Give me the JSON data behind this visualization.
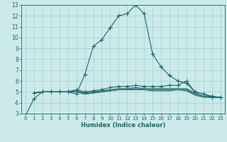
{
  "xlabel": "Humidex (Indice chaleur)",
  "bg_color": "#cceaea",
  "grid_color": "#aad4d4",
  "line_color": "#226666",
  "xlim": [
    -0.5,
    23.5
  ],
  "ylim": [
    3,
    13
  ],
  "xticks": [
    0,
    1,
    2,
    3,
    4,
    5,
    6,
    7,
    8,
    9,
    10,
    11,
    12,
    13,
    14,
    15,
    16,
    17,
    18,
    19,
    20,
    21,
    22,
    23
  ],
  "yticks": [
    3,
    4,
    5,
    6,
    7,
    8,
    9,
    10,
    11,
    12,
    13
  ],
  "lines": [
    {
      "x": [
        0,
        1,
        2,
        3,
        4,
        5,
        6,
        7,
        8,
        9,
        10,
        11,
        12,
        13,
        14,
        15,
        16,
        17,
        18,
        19,
        20,
        21,
        22,
        23
      ],
      "y": [
        2.8,
        4.4,
        5.0,
        5.0,
        5.0,
        5.0,
        4.8,
        6.6,
        9.2,
        9.8,
        10.9,
        12.0,
        12.2,
        13.0,
        12.2,
        8.5,
        7.3,
        6.5,
        6.0,
        5.8,
        5.0,
        4.8,
        4.6,
        4.5
      ],
      "marker": "+",
      "markersize": 4
    },
    {
      "x": [
        1,
        2,
        3,
        4,
        5,
        6,
        7,
        8,
        9,
        10,
        11,
        12,
        13,
        14,
        15,
        16,
        17,
        18,
        19,
        20,
        21,
        22,
        23
      ],
      "y": [
        4.9,
        5.0,
        5.0,
        5.0,
        5.0,
        5.2,
        5.0,
        5.1,
        5.2,
        5.4,
        5.5,
        5.5,
        5.6,
        5.5,
        5.5,
        5.5,
        5.6,
        5.6,
        6.0,
        5.0,
        4.8,
        4.5,
        4.5
      ],
      "marker": "+",
      "markersize": 4
    },
    {
      "x": [
        1,
        2,
        3,
        4,
        5,
        6,
        7,
        8,
        9,
        10,
        11,
        12,
        13,
        14,
        15,
        16,
        17,
        18,
        19,
        20,
        21,
        22,
        23
      ],
      "y": [
        4.9,
        5.0,
        5.0,
        5.0,
        5.0,
        5.1,
        4.9,
        5.0,
        5.1,
        5.2,
        5.3,
        5.3,
        5.4,
        5.3,
        5.3,
        5.3,
        5.3,
        5.3,
        5.3,
        4.9,
        4.6,
        4.5,
        4.5
      ],
      "marker": null,
      "markersize": 0
    },
    {
      "x": [
        1,
        2,
        3,
        4,
        5,
        6,
        7,
        8,
        9,
        10,
        11,
        12,
        13,
        14,
        15,
        16,
        17,
        18,
        19,
        20,
        21,
        22,
        23
      ],
      "y": [
        4.9,
        5.0,
        5.0,
        5.0,
        5.0,
        5.0,
        4.8,
        4.9,
        5.0,
        5.1,
        5.2,
        5.2,
        5.3,
        5.2,
        5.2,
        5.2,
        5.2,
        5.2,
        5.2,
        4.8,
        4.6,
        4.5,
        4.5
      ],
      "marker": null,
      "markersize": 0
    },
    {
      "x": [
        1,
        2,
        3,
        4,
        5,
        6,
        7,
        8,
        9,
        10,
        11,
        12,
        13,
        14,
        15,
        16,
        17,
        18,
        19,
        20,
        21,
        22,
        23
      ],
      "y": [
        4.9,
        5.0,
        5.0,
        5.0,
        5.0,
        5.0,
        4.8,
        4.9,
        5.0,
        5.1,
        5.2,
        5.2,
        5.2,
        5.2,
        5.1,
        5.1,
        5.1,
        5.2,
        5.1,
        4.7,
        4.5,
        4.5,
        4.5
      ],
      "marker": null,
      "markersize": 0
    }
  ]
}
